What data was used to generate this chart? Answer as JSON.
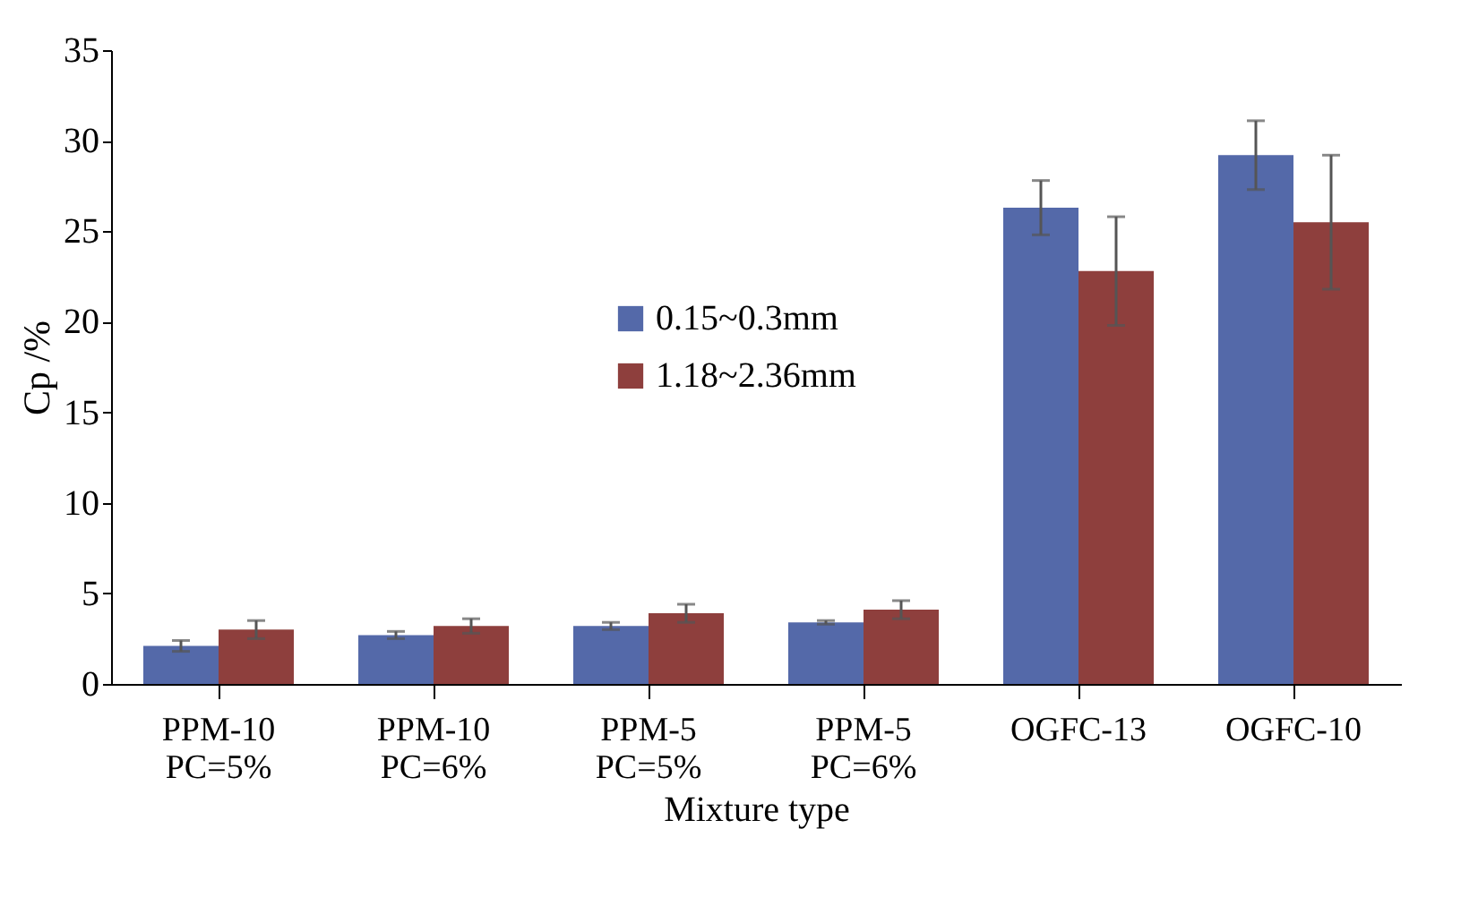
{
  "chart_data": {
    "type": "bar",
    "xlabel": "Mixture type",
    "ylabel": "Cp /%",
    "categories": [
      "PPM-10\nPC=5%",
      "PPM-10\nPC=6%",
      "PPM-5\nPC=5%",
      "PPM-5\nPC=6%",
      "OGFC-13",
      "OGFC-10"
    ],
    "series": [
      {
        "name": "0.15~0.3mm",
        "color": "#5469a9",
        "values": [
          2.1,
          2.7,
          3.2,
          3.4,
          26.3,
          29.2
        ],
        "errors": [
          0.3,
          0.2,
          0.2,
          0.1,
          1.5,
          1.9
        ]
      },
      {
        "name": "1.18~2.36mm",
        "color": "#8e3f3d",
        "values": [
          3.0,
          3.2,
          3.9,
          4.1,
          22.8,
          25.5
        ],
        "errors": [
          0.5,
          0.4,
          0.5,
          0.5,
          3.0,
          3.7
        ]
      }
    ],
    "ylim": [
      0,
      35
    ],
    "yticks": [
      0,
      5,
      10,
      15,
      20,
      25,
      30,
      35
    ],
    "grid": false,
    "legend": "center"
  }
}
